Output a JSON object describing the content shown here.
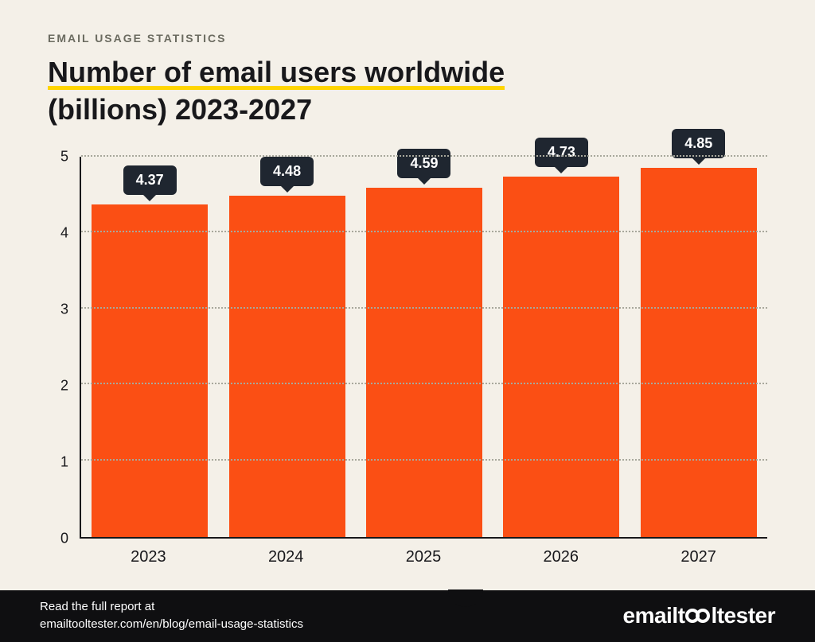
{
  "colors": {
    "background": "#f4f0e8",
    "text_dark": "#18181b",
    "text_muted": "#6b6b60",
    "underline": "#ffd500",
    "bar": "#fb4f14",
    "axis": "#18181b",
    "gridline": "#a8a89c",
    "tooltip_bg": "#1f2630",
    "tooltip_text": "#ffffff",
    "footer_bg": "#0f0f11",
    "footer_text": "#ffffff"
  },
  "eyebrow": "EMAIL USAGE STATISTICS",
  "title_line1": "Number of email users worldwide",
  "title_line2": "(billions) 2023-2027",
  "chart": {
    "type": "bar",
    "ylim": [
      0,
      5
    ],
    "ytick_step": 1,
    "yticks": [
      0,
      1,
      2,
      3,
      4,
      5
    ],
    "categories": [
      "2023",
      "2024",
      "2025",
      "2026",
      "2027"
    ],
    "values": [
      4.37,
      4.48,
      4.59,
      4.73,
      4.85
    ],
    "value_labels": [
      "4.37",
      "4.48",
      "4.59",
      "4.73",
      "4.85"
    ],
    "bar_width_pct": 94,
    "label_fontsize": 20,
    "tick_fontsize": 18,
    "tooltip_fontsize": 18
  },
  "footer": {
    "line1": "Read the full report at",
    "line2": "emailtooltester.com/en/blog/email-usage-statistics",
    "brand_pre": "emailt",
    "brand_post": "ltester"
  }
}
